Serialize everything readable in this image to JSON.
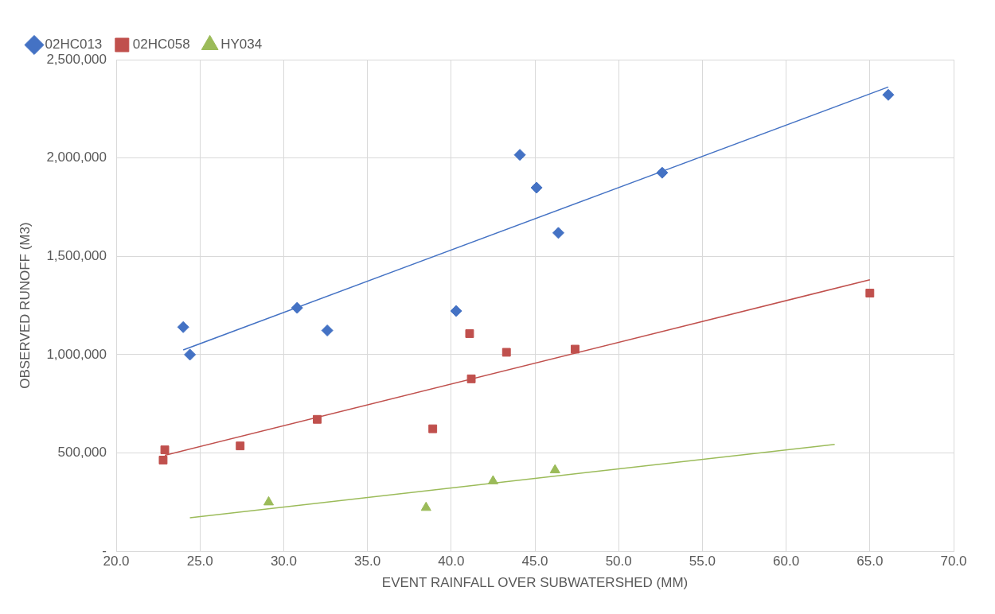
{
  "chart_data": {
    "type": "scatter",
    "xlabel": "EVENT RAINFALL OVER SUBWATERSHED (MM)",
    "ylabel": "OBSERVED RUNOFF (M3)",
    "xlim": [
      20,
      70
    ],
    "xticks": [
      {
        "value": 20,
        "label": "20.0"
      },
      {
        "value": 25,
        "label": "25.0"
      },
      {
        "value": 30,
        "label": "30.0"
      },
      {
        "value": 35,
        "label": "35.0"
      },
      {
        "value": 40,
        "label": "40.0"
      },
      {
        "value": 45,
        "label": "45.0"
      },
      {
        "value": 50,
        "label": "50.0"
      },
      {
        "value": 55,
        "label": "55.0"
      },
      {
        "value": 60,
        "label": "60.0"
      },
      {
        "value": 65,
        "label": "65.0"
      },
      {
        "value": 70,
        "label": "70.0"
      }
    ],
    "ylim": [
      0,
      2500000
    ],
    "yticks": [
      {
        "value": 0,
        "label": "-"
      },
      {
        "value": 500000,
        "label": "500,000"
      },
      {
        "value": 1000000,
        "label": "1,000,000"
      },
      {
        "value": 1500000,
        "label": "1,500,000"
      },
      {
        "value": 2000000,
        "label": "2,000,000"
      },
      {
        "value": 2500000,
        "label": "2,500,000"
      }
    ],
    "grid": true,
    "legend": "top left",
    "series": [
      {
        "name": "02HC013",
        "color": "#4472c4",
        "marker": "diamond",
        "x": [
          24.0,
          24.4,
          30.8,
          32.6,
          40.3,
          44.1,
          45.1,
          46.4,
          52.6,
          66.1
        ],
        "values": [
          1140000,
          1000000,
          1238000,
          1123000,
          1222000,
          2016000,
          1849000,
          1619000,
          1925000,
          2321000
        ]
      },
      {
        "name": "02HC058",
        "color": "#c0504d",
        "marker": "square",
        "x": [
          22.8,
          22.9,
          27.4,
          32.0,
          38.9,
          41.1,
          41.2,
          43.3,
          47.4,
          65.0
        ],
        "values": [
          464000,
          516000,
          536000,
          671000,
          623000,
          1107000,
          877000,
          1012000,
          1028000,
          1313000
        ]
      },
      {
        "name": "HY034",
        "color": "#9bbb59",
        "marker": "triangle",
        "x": [
          29.1,
          38.5,
          42.5,
          46.2
        ],
        "values": [
          250000,
          222000,
          357000,
          413000
        ]
      },
      {
        "type": "line",
        "color": "#4472c4",
        "x": [
          24.0,
          66.1
        ],
        "values": [
          1024000,
          2361000
        ]
      },
      {
        "type": "line",
        "color": "#c0504d",
        "x": [
          22.9,
          65.0
        ],
        "values": [
          488000,
          1381000
        ]
      },
      {
        "type": "line",
        "color": "#9bbb59",
        "x": [
          24.4,
          62.9
        ],
        "values": [
          171000,
          544000
        ]
      }
    ]
  }
}
